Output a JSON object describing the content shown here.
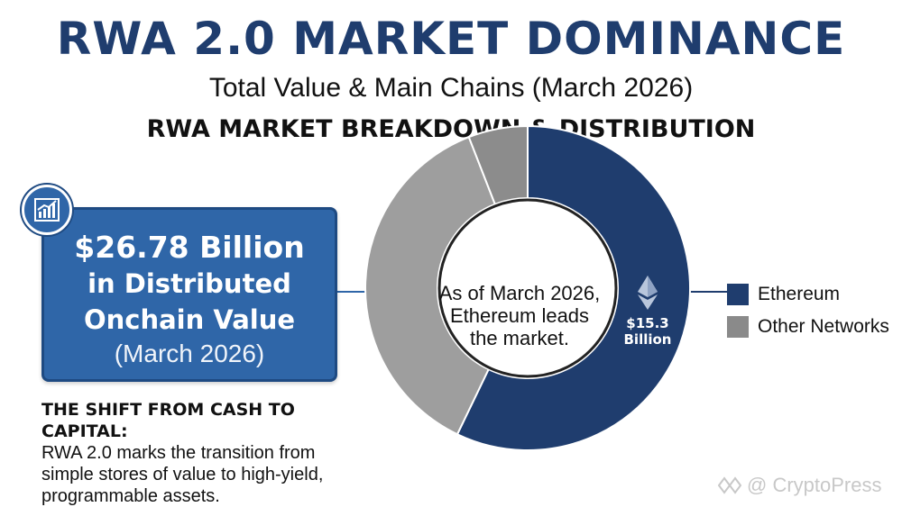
{
  "header": {
    "title": "RWA 2.0 MARKET DOMINANCE",
    "subtitle": "Total Value & Main Chains (March 2026)",
    "section_title": "RWA MARKET BREAKDOWN & DISTRIBUTION"
  },
  "stat_box": {
    "value": "$26.78 Billion",
    "label_line1": "in Distributed",
    "label_line2": "Onchain Value",
    "date": "(March 2026)",
    "icon": "chart-growth-icon"
  },
  "note": {
    "heading": "THE SHIFT FROM CASH TO CAPITAL:",
    "body_line1": "RWA 2.0 marks the transition from",
    "body_line2": "simple stores of value to high-yield,",
    "body_line3": "programmable assets."
  },
  "chart_data": {
    "type": "pie",
    "style": "donut",
    "title": "RWA MARKET BREAKDOWN & DISTRIBUTION",
    "total": 26.78,
    "unit": "Billion USD",
    "series": [
      {
        "name": "Ethereum",
        "value": 15.3,
        "color": "#1f3d6e"
      },
      {
        "name": "Other Networks",
        "value": 11.48,
        "color": "#9e9e9e"
      }
    ],
    "other_networks_segments": [
      9.9,
      1.58
    ],
    "slice_label": {
      "line1": "$15.3",
      "line2": "Billion"
    },
    "center_text": {
      "line1": "As of March 2026,",
      "line2": "Ethereum leads",
      "line3": "the market."
    },
    "legend_placement": "right",
    "slice_icon": "ethereum-icon"
  },
  "legend": {
    "items": [
      {
        "label": "Ethereum",
        "color": "#1f3d6e"
      },
      {
        "label": "Other Networks",
        "color": "#8a8a8a"
      }
    ]
  },
  "watermark": {
    "text": "@ CryptoPress",
    "icon": "brand-diamond-icon"
  }
}
